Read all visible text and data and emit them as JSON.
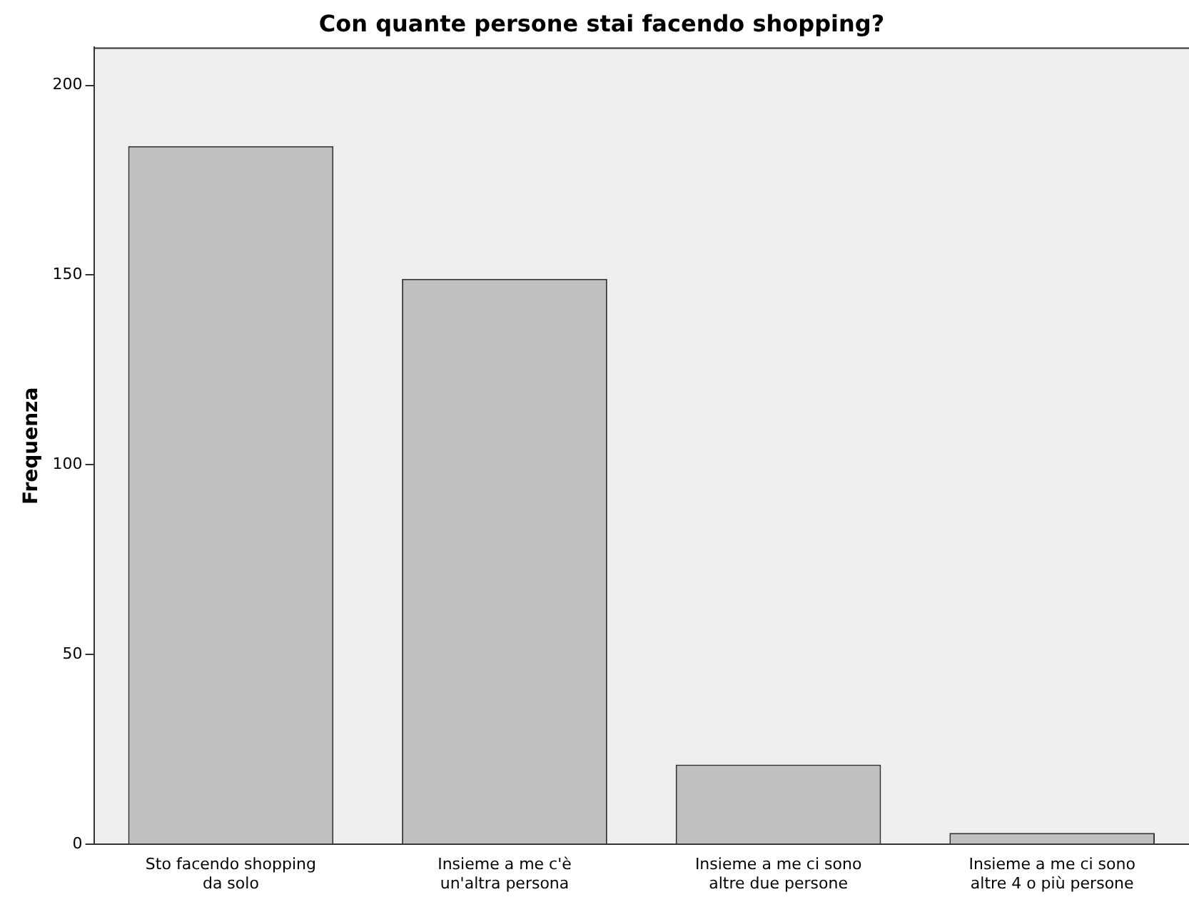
{
  "chart_data": {
    "type": "bar",
    "title": "Con quante persone stai facendo shopping?",
    "ylabel": "Frequenza",
    "categories": [
      "Sto facendo shopping\nda solo",
      "Insieme a me c'è\nun'altra persona",
      "Insieme a me ci sono\naltre due persone",
      "Insieme a me ci sono\naltre 4 o più persone"
    ],
    "values": [
      184,
      149,
      21,
      3
    ],
    "color": "#c0c0c0",
    "ylim": [
      0,
      210
    ],
    "yticks": [
      0,
      50,
      100,
      150,
      200
    ],
    "grid": false,
    "legend": false
  }
}
